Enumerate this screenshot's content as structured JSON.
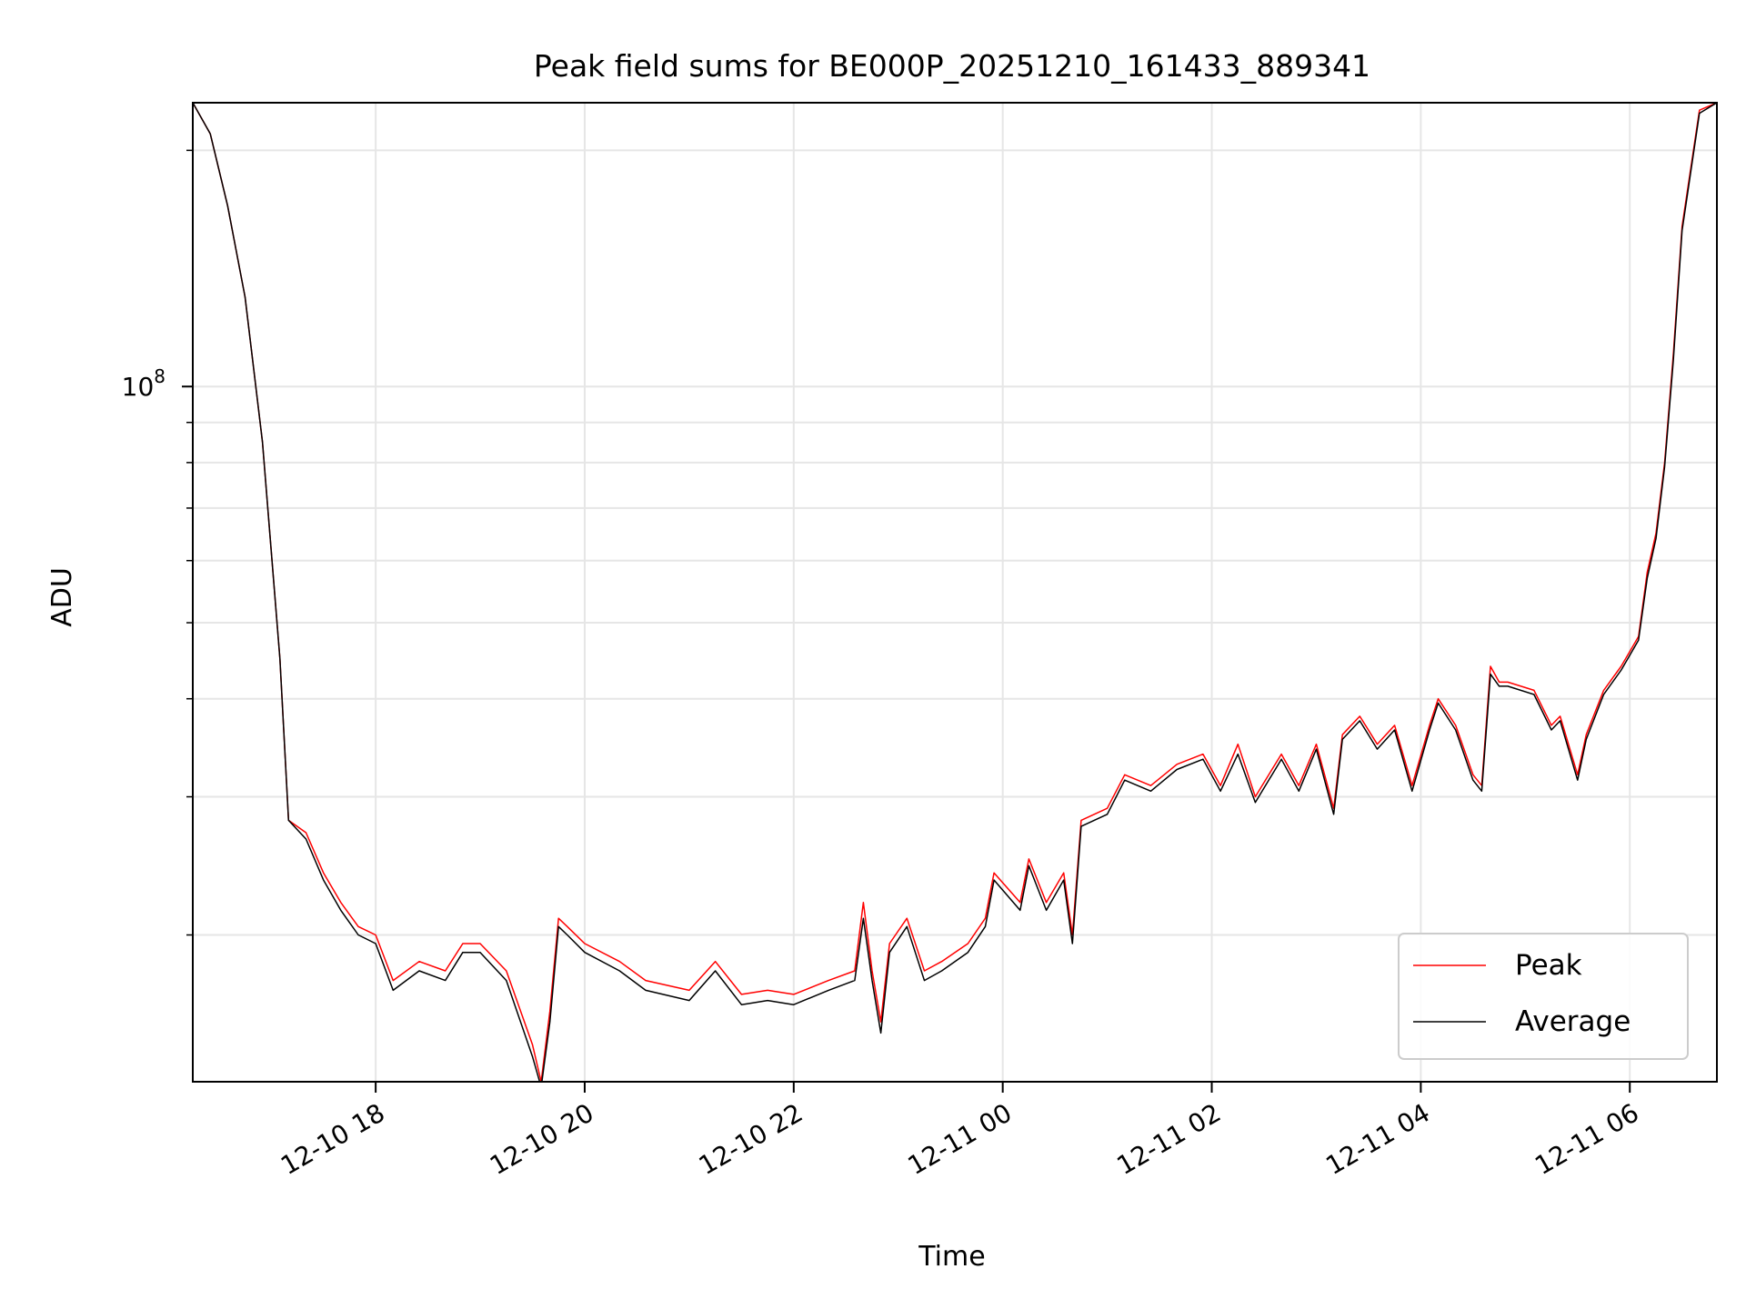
{
  "chart_data": {
    "type": "line",
    "title": "Peak field sums for BE000P_20251210_161433_889341",
    "xlabel": "Time",
    "ylabel": "ADU",
    "yscale": "log",
    "ylim": [
      13000000,
      230000000
    ],
    "xlim": [
      "2025-12-10 16:15",
      "2025-12-11 06:50"
    ],
    "grid": true,
    "legend_position": "lower-right",
    "legend": [
      "Peak",
      "Average"
    ],
    "x_tick_labels": [
      "12-10 18",
      "12-10 20",
      "12-10 22",
      "12-11 00",
      "12-11 02",
      "12-11 04",
      "12-11 06"
    ],
    "x_tick_values": [
      "2025-12-10 18:00",
      "2025-12-10 20:00",
      "2025-12-10 22:00",
      "2025-12-11 00:00",
      "2025-12-11 02:00",
      "2025-12-11 04:00",
      "2025-12-11 06:00"
    ],
    "y_major_ticks": [
      {
        "value": 100000000,
        "base": "10",
        "exponent": "8"
      }
    ],
    "y_minor_ticks": [
      20000000,
      30000000,
      40000000,
      50000000,
      60000000,
      70000000,
      80000000,
      90000000,
      200000000
    ],
    "x": [
      "2025-12-10 16:15",
      "2025-12-10 16:25",
      "2025-12-10 16:35",
      "2025-12-10 16:45",
      "2025-12-10 16:55",
      "2025-12-10 17:05",
      "2025-12-10 17:10",
      "2025-12-10 17:20",
      "2025-12-10 17:30",
      "2025-12-10 17:40",
      "2025-12-10 17:50",
      "2025-12-10 18:00",
      "2025-12-10 18:10",
      "2025-12-10 18:25",
      "2025-12-10 18:40",
      "2025-12-10 18:50",
      "2025-12-10 19:00",
      "2025-12-10 19:15",
      "2025-12-10 19:30",
      "2025-12-10 19:35",
      "2025-12-10 19:40",
      "2025-12-10 19:45",
      "2025-12-10 19:50",
      "2025-12-10 20:00",
      "2025-12-10 20:20",
      "2025-12-10 20:35",
      "2025-12-10 21:00",
      "2025-12-10 21:15",
      "2025-12-10 21:30",
      "2025-12-10 21:45",
      "2025-12-10 22:00",
      "2025-12-10 22:20",
      "2025-12-10 22:35",
      "2025-12-10 22:40",
      "2025-12-10 22:45",
      "2025-12-10 22:50",
      "2025-12-10 22:55",
      "2025-12-10 23:05",
      "2025-12-10 23:15",
      "2025-12-10 23:25",
      "2025-12-10 23:40",
      "2025-12-10 23:50",
      "2025-12-10 23:55",
      "2025-12-11 00:10",
      "2025-12-11 00:15",
      "2025-12-11 00:25",
      "2025-12-11 00:35",
      "2025-12-11 00:40",
      "2025-12-11 00:45",
      "2025-12-11 01:00",
      "2025-12-11 01:10",
      "2025-12-11 01:25",
      "2025-12-11 01:40",
      "2025-12-11 01:55",
      "2025-12-11 02:05",
      "2025-12-11 02:15",
      "2025-12-11 02:25",
      "2025-12-11 02:40",
      "2025-12-11 02:50",
      "2025-12-11 03:00",
      "2025-12-11 03:10",
      "2025-12-11 03:15",
      "2025-12-11 03:25",
      "2025-12-11 03:35",
      "2025-12-11 03:45",
      "2025-12-11 03:55",
      "2025-12-11 04:05",
      "2025-12-11 04:10",
      "2025-12-11 04:20",
      "2025-12-11 04:30",
      "2025-12-11 04:35",
      "2025-12-11 04:40",
      "2025-12-11 04:45",
      "2025-12-11 04:50",
      "2025-12-11 05:05",
      "2025-12-11 05:15",
      "2025-12-11 05:20",
      "2025-12-11 05:30",
      "2025-12-11 05:35",
      "2025-12-11 05:45",
      "2025-12-11 05:55",
      "2025-12-11 06:05",
      "2025-12-11 06:10",
      "2025-12-11 06:15",
      "2025-12-11 06:20",
      "2025-12-11 06:25",
      "2025-12-11 06:30",
      "2025-12-11 06:40",
      "2025-12-11 06:50"
    ],
    "series": [
      {
        "name": "Peak",
        "color": "#ff0000",
        "values": [
          230000000,
          210000000,
          170000000,
          130000000,
          85000000,
          45000000,
          28000000,
          27000000,
          24000000,
          22000000,
          20500000,
          20000000,
          17500000,
          18500000,
          18000000,
          19500000,
          19500000,
          18000000,
          14500000,
          13000000,
          16000000,
          21000000,
          20500000,
          19500000,
          18500000,
          17500000,
          17000000,
          18500000,
          16800000,
          17000000,
          16800000,
          17500000,
          18000000,
          22000000,
          18000000,
          15500000,
          19500000,
          21000000,
          18000000,
          18500000,
          19500000,
          21000000,
          24000000,
          22000000,
          25000000,
          22000000,
          24000000,
          20000000,
          28000000,
          29000000,
          32000000,
          31000000,
          33000000,
          34000000,
          31000000,
          35000000,
          30000000,
          34000000,
          31000000,
          35000000,
          29000000,
          36000000,
          38000000,
          35000000,
          37000000,
          31000000,
          37000000,
          40000000,
          37000000,
          32000000,
          31000000,
          44000000,
          42000000,
          42000000,
          41000000,
          37000000,
          38000000,
          32000000,
          36000000,
          41000000,
          44000000,
          48000000,
          58000000,
          65000000,
          80000000,
          110000000,
          160000000,
          225000000,
          230000000
        ]
      },
      {
        "name": "Average",
        "color": "#000000",
        "values": [
          230000000,
          210000000,
          170000000,
          130000000,
          85000000,
          45000000,
          28000000,
          26500000,
          23500000,
          21500000,
          20000000,
          19500000,
          17000000,
          18000000,
          17500000,
          19000000,
          19000000,
          17500000,
          14000000,
          12800000,
          15500000,
          20500000,
          20000000,
          19000000,
          18000000,
          17000000,
          16500000,
          18000000,
          16300000,
          16500000,
          16300000,
          17000000,
          17500000,
          21000000,
          17500000,
          15000000,
          19000000,
          20500000,
          17500000,
          18000000,
          19000000,
          20500000,
          23500000,
          21500000,
          24500000,
          21500000,
          23500000,
          19500000,
          27500000,
          28500000,
          31500000,
          30500000,
          32500000,
          33500000,
          30500000,
          34000000,
          29500000,
          33500000,
          30500000,
          34500000,
          28500000,
          35500000,
          37500000,
          34500000,
          36500000,
          30500000,
          36500000,
          39500000,
          36500000,
          31500000,
          30500000,
          43000000,
          41500000,
          41500000,
          40500000,
          36500000,
          37500000,
          31500000,
          35500000,
          40500000,
          43500000,
          47500000,
          57000000,
          64000000,
          79000000,
          108000000,
          158000000,
          223000000,
          230000000
        ]
      }
    ]
  }
}
